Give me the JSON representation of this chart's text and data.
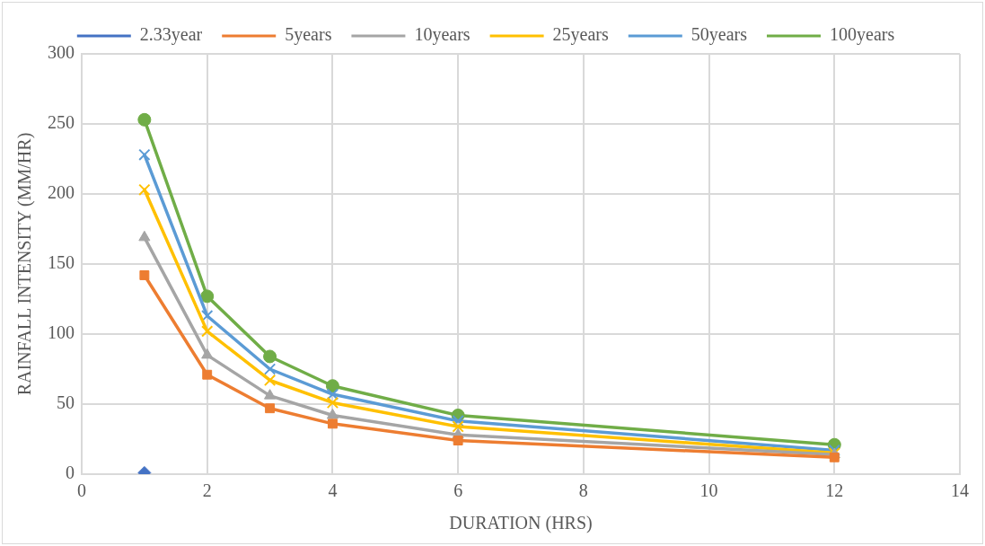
{
  "chart_data": {
    "type": "line",
    "xlabel": "DURATION (HRS)",
    "ylabel": "RAINFALL INTENSITY (MM/HR)",
    "x": [
      1,
      2,
      3,
      4,
      6,
      12
    ],
    "series": [
      {
        "name": "2.33year",
        "color": "#4472c4",
        "marker": "diamond",
        "values": [
          1,
          null,
          null,
          null,
          null,
          null
        ]
      },
      {
        "name": "5years",
        "color": "#ed7d31",
        "marker": "square",
        "values": [
          142,
          71,
          47,
          36,
          24,
          12
        ]
      },
      {
        "name": "10years",
        "color": "#a5a5a5",
        "marker": "triangle",
        "values": [
          169,
          85,
          56,
          42,
          28,
          14
        ]
      },
      {
        "name": "25years",
        "color": "#ffc000",
        "marker": "cross",
        "values": [
          203,
          102,
          67,
          51,
          34,
          15
        ]
      },
      {
        "name": "50years",
        "color": "#5b9bd5",
        "marker": "cross",
        "values": [
          228,
          113,
          75,
          57,
          38,
          17
        ]
      },
      {
        "name": "100years",
        "color": "#70ad47",
        "marker": "circle",
        "values": [
          253,
          127,
          84,
          63,
          42,
          21
        ]
      }
    ],
    "xlim": [
      0,
      14
    ],
    "xticks": [
      0,
      2,
      4,
      6,
      8,
      10,
      12,
      14
    ],
    "ylim": [
      0,
      300
    ],
    "yticks": [
      0,
      50,
      100,
      150,
      200,
      250,
      300
    ],
    "grid": true,
    "legend": "top",
    "line_style": "solid"
  }
}
